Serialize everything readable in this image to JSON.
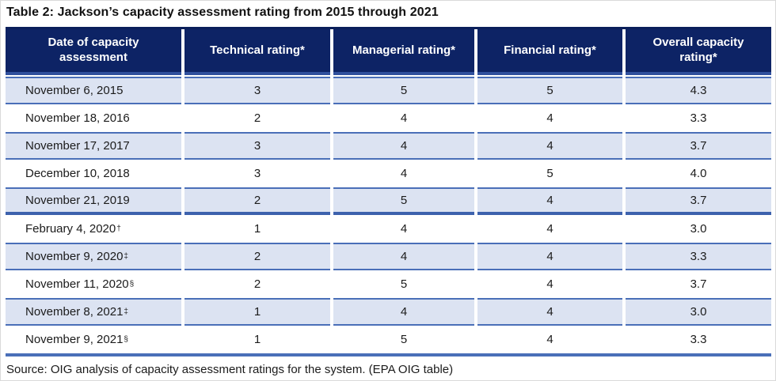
{
  "title": "Table 2: Jackson’s capacity assessment rating from 2015 through 2021",
  "source": "Source: OIG analysis of capacity assessment ratings for the system. (EPA OIG table)",
  "colors": {
    "header_bg": "#0d2365",
    "header_bevel": "#30509d",
    "header_text": "#ffffff",
    "row_alt_bg": "#dce3f2",
    "row_border": "#4a6fb8",
    "section_border": "#3d62ad",
    "top_border": "#0b1f5a",
    "bottom_border": "#4a6fb8",
    "text": "#1b1b1b"
  },
  "table": {
    "columns": [
      "Date of capacity assessment",
      "Technical rating*",
      "Managerial rating*",
      "Financial rating*",
      "Overall capacity rating*"
    ],
    "rows": [
      {
        "date": "November 6, 2015",
        "sup": "",
        "technical": "3",
        "managerial": "5",
        "financial": "5",
        "overall": "4.3",
        "section_end": false
      },
      {
        "date": "November 18, 2016",
        "sup": "",
        "technical": "2",
        "managerial": "4",
        "financial": "4",
        "overall": "3.3",
        "section_end": false
      },
      {
        "date": "November 17, 2017",
        "sup": "",
        "technical": "3",
        "managerial": "4",
        "financial": "4",
        "overall": "3.7",
        "section_end": false
      },
      {
        "date": "December 10, 2018",
        "sup": "",
        "technical": "3",
        "managerial": "4",
        "financial": "5",
        "overall": "4.0",
        "section_end": false
      },
      {
        "date": "November 21, 2019",
        "sup": "",
        "technical": "2",
        "managerial": "5",
        "financial": "4",
        "overall": "3.7",
        "section_end": true
      },
      {
        "date": "February 4, 2020",
        "sup": "†",
        "technical": "1",
        "managerial": "4",
        "financial": "4",
        "overall": "3.0",
        "section_end": false
      },
      {
        "date": "November 9, 2020",
        "sup": "‡",
        "technical": "2",
        "managerial": "4",
        "financial": "4",
        "overall": "3.3",
        "section_end": false
      },
      {
        "date": "November 11, 2020",
        "sup": "§",
        "technical": "2",
        "managerial": "5",
        "financial": "4",
        "overall": "3.7",
        "section_end": false
      },
      {
        "date": "November 8, 2021",
        "sup": "‡",
        "technical": "1",
        "managerial": "4",
        "financial": "4",
        "overall": "3.0",
        "section_end": false
      },
      {
        "date": "November 9, 2021",
        "sup": "§",
        "technical": "1",
        "managerial": "5",
        "financial": "4",
        "overall": "3.3",
        "section_end": false
      }
    ]
  }
}
